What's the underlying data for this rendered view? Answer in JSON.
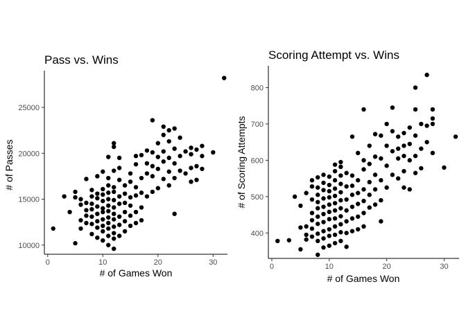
{
  "chart_data": [
    {
      "type": "scatter",
      "title": "Pass vs. Wins",
      "xlabel": "# of Games Won",
      "ylabel": "# of Passes",
      "xlim": [
        -0.6,
        32.6
      ],
      "ylim": [
        9000,
        29000
      ],
      "xticks": [
        0,
        10,
        20,
        30
      ],
      "yticks": [
        10000,
        15000,
        20000,
        25000
      ],
      "grid": false,
      "points": [
        [
          1,
          11800
        ],
        [
          3,
          15300
        ],
        [
          4,
          13600
        ],
        [
          5,
          10200
        ],
        [
          5,
          15200
        ],
        [
          5,
          15800
        ],
        [
          6,
          11800
        ],
        [
          6,
          12700
        ],
        [
          6,
          14400
        ],
        [
          6,
          15000
        ],
        [
          7,
          12400
        ],
        [
          7,
          13200
        ],
        [
          7,
          13800
        ],
        [
          7,
          14600
        ],
        [
          7,
          17200
        ],
        [
          8,
          11200
        ],
        [
          8,
          12300
        ],
        [
          8,
          13100
        ],
        [
          8,
          13900
        ],
        [
          8,
          14500
        ],
        [
          8,
          15300
        ],
        [
          8,
          16000
        ],
        [
          9,
          10800
        ],
        [
          9,
          11900
        ],
        [
          9,
          12600
        ],
        [
          9,
          13400
        ],
        [
          9,
          14200
        ],
        [
          9,
          15100
        ],
        [
          9,
          15600
        ],
        [
          9,
          17500
        ],
        [
          10,
          10500
        ],
        [
          10,
          11500
        ],
        [
          10,
          12100
        ],
        [
          10,
          12800
        ],
        [
          10,
          13600
        ],
        [
          10,
          14000
        ],
        [
          10,
          14800
        ],
        [
          10,
          15500
        ],
        [
          10,
          16100
        ],
        [
          10,
          18000
        ],
        [
          11,
          10000
        ],
        [
          11,
          11000
        ],
        [
          11,
          11800
        ],
        [
          11,
          12400
        ],
        [
          11,
          13000
        ],
        [
          11,
          13700
        ],
        [
          11,
          14300
        ],
        [
          11,
          15000
        ],
        [
          11,
          15700
        ],
        [
          11,
          16500
        ],
        [
          11,
          17300
        ],
        [
          11,
          19600
        ],
        [
          12,
          9600
        ],
        [
          12,
          10700
        ],
        [
          12,
          11300
        ],
        [
          12,
          12000
        ],
        [
          12,
          12800
        ],
        [
          12,
          13400
        ],
        [
          12,
          14100
        ],
        [
          12,
          14900
        ],
        [
          12,
          15800
        ],
        [
          12,
          16300
        ],
        [
          12,
          18100
        ],
        [
          12,
          21100
        ],
        [
          12,
          20700
        ],
        [
          13,
          11000
        ],
        [
          13,
          12200
        ],
        [
          13,
          13100
        ],
        [
          13,
          14500
        ],
        [
          13,
          15300
        ],
        [
          13,
          17100
        ],
        [
          13,
          18400
        ],
        [
          13,
          19500
        ],
        [
          14,
          11500
        ],
        [
          14,
          12600
        ],
        [
          14,
          13600
        ],
        [
          14,
          14600
        ],
        [
          14,
          15600
        ],
        [
          14,
          16500
        ],
        [
          15,
          12100
        ],
        [
          15,
          13200
        ],
        [
          15,
          14300
        ],
        [
          15,
          15200
        ],
        [
          15,
          16900
        ],
        [
          15,
          17800
        ],
        [
          16,
          12400
        ],
        [
          16,
          13600
        ],
        [
          16,
          15400
        ],
        [
          16,
          16300
        ],
        [
          16,
          18800
        ],
        [
          16,
          19700
        ],
        [
          17,
          12700
        ],
        [
          17,
          14100
        ],
        [
          17,
          15700
        ],
        [
          17,
          17300
        ],
        [
          17,
          19800
        ],
        [
          18,
          15300
        ],
        [
          18,
          17800
        ],
        [
          18,
          18900
        ],
        [
          18,
          20300
        ],
        [
          19,
          15800
        ],
        [
          19,
          17500
        ],
        [
          19,
          18600
        ],
        [
          19,
          20100
        ],
        [
          19,
          23600
        ],
        [
          20,
          16200
        ],
        [
          20,
          18300
        ],
        [
          20,
          19600
        ],
        [
          20,
          21100
        ],
        [
          21,
          17200
        ],
        [
          21,
          19100
        ],
        [
          21,
          20200
        ],
        [
          21,
          22000
        ],
        [
          21,
          22900
        ],
        [
          22,
          16500
        ],
        [
          22,
          18000
        ],
        [
          22,
          19500
        ],
        [
          22,
          21300
        ],
        [
          22,
          22500
        ],
        [
          23,
          13400
        ],
        [
          23,
          17300
        ],
        [
          23,
          18900
        ],
        [
          23,
          20500
        ],
        [
          23,
          22700
        ],
        [
          24,
          18100
        ],
        [
          24,
          19700
        ],
        [
          24,
          21700
        ],
        [
          25,
          17800
        ],
        [
          25,
          20200
        ],
        [
          26,
          16900
        ],
        [
          26,
          18400
        ],
        [
          26,
          19900
        ],
        [
          26,
          20600
        ],
        [
          27,
          17100
        ],
        [
          27,
          18600
        ],
        [
          27,
          20400
        ],
        [
          28,
          18300
        ],
        [
          28,
          19700
        ],
        [
          28,
          20800
        ],
        [
          30,
          20100
        ],
        [
          32,
          28200
        ]
      ]
    },
    {
      "type": "scatter",
      "title": "Scoring Attempt vs. Wins",
      "xlabel": "# of Games Won",
      "ylabel": "# of Scoring Attempts",
      "xlim": [
        -0.6,
        32.6
      ],
      "ylim": [
        330,
        860
      ],
      "xticks": [
        0,
        10,
        20,
        30
      ],
      "yticks": [
        400,
        500,
        600,
        700,
        800
      ],
      "grid": false,
      "points": [
        [
          1,
          378
        ],
        [
          3,
          380
        ],
        [
          4,
          500
        ],
        [
          5,
          355
        ],
        [
          5,
          415
        ],
        [
          5,
          475
        ],
        [
          6,
          382
        ],
        [
          6,
          395
        ],
        [
          6,
          418
        ],
        [
          6,
          510
        ],
        [
          7,
          390
        ],
        [
          7,
          412
        ],
        [
          7,
          435
        ],
        [
          7,
          455
        ],
        [
          7,
          492
        ],
        [
          7,
          528
        ],
        [
          7,
          545
        ],
        [
          8,
          340
        ],
        [
          8,
          378
        ],
        [
          8,
          398
        ],
        [
          8,
          425
        ],
        [
          8,
          445
        ],
        [
          8,
          468
        ],
        [
          8,
          485
        ],
        [
          8,
          505
        ],
        [
          8,
          525
        ],
        [
          8,
          553
        ],
        [
          9,
          360
        ],
        [
          9,
          385
        ],
        [
          9,
          405
        ],
        [
          9,
          430
        ],
        [
          9,
          452
        ],
        [
          9,
          472
        ],
        [
          9,
          495
        ],
        [
          9,
          518
        ],
        [
          9,
          538
        ],
        [
          9,
          560
        ],
        [
          10,
          365
        ],
        [
          10,
          392
        ],
        [
          10,
          410
        ],
        [
          10,
          438
        ],
        [
          10,
          458
        ],
        [
          10,
          478
        ],
        [
          10,
          498
        ],
        [
          10,
          515
        ],
        [
          10,
          532
        ],
        [
          10,
          555
        ],
        [
          11,
          372
        ],
        [
          11,
          395
        ],
        [
          11,
          418
        ],
        [
          11,
          440
        ],
        [
          11,
          462
        ],
        [
          11,
          482
        ],
        [
          11,
          502
        ],
        [
          11,
          522
        ],
        [
          11,
          545
        ],
        [
          11,
          570
        ],
        [
          11,
          588
        ],
        [
          12,
          378
        ],
        [
          12,
          402
        ],
        [
          12,
          424
        ],
        [
          12,
          446
        ],
        [
          12,
          468
        ],
        [
          12,
          490
        ],
        [
          12,
          512
        ],
        [
          12,
          535
        ],
        [
          12,
          558
        ],
        [
          12,
          582
        ],
        [
          12,
          595
        ],
        [
          13,
          362
        ],
        [
          13,
          400
        ],
        [
          13,
          432
        ],
        [
          13,
          462
        ],
        [
          13,
          492
        ],
        [
          13,
          528
        ],
        [
          13,
          565
        ],
        [
          14,
          405
        ],
        [
          14,
          440
        ],
        [
          14,
          472
        ],
        [
          14,
          505
        ],
        [
          14,
          530
        ],
        [
          14,
          558
        ],
        [
          14,
          665
        ],
        [
          15,
          410
        ],
        [
          15,
          445
        ],
        [
          15,
          480
        ],
        [
          15,
          510
        ],
        [
          15,
          545
        ],
        [
          15,
          620
        ],
        [
          16,
          418
        ],
        [
          16,
          455
        ],
        [
          16,
          488
        ],
        [
          16,
          520
        ],
        [
          16,
          575
        ],
        [
          16,
          600
        ],
        [
          16,
          740
        ],
        [
          17,
          470
        ],
        [
          17,
          505
        ],
        [
          17,
          540
        ],
        [
          17,
          590
        ],
        [
          17,
          640
        ],
        [
          18,
          478
        ],
        [
          18,
          520
        ],
        [
          18,
          560
        ],
        [
          18,
          610
        ],
        [
          18,
          672
        ],
        [
          19,
          432
        ],
        [
          19,
          490
        ],
        [
          19,
          545
        ],
        [
          19,
          605
        ],
        [
          19,
          668
        ],
        [
          20,
          525
        ],
        [
          20,
          585
        ],
        [
          20,
          640
        ],
        [
          20,
          700
        ],
        [
          21,
          560
        ],
        [
          21,
          625
        ],
        [
          21,
          680
        ],
        [
          21,
          745
        ],
        [
          22,
          550
        ],
        [
          22,
          605
        ],
        [
          22,
          632
        ],
        [
          22,
          665
        ],
        [
          23,
          525
        ],
        [
          23,
          570
        ],
        [
          23,
          612
        ],
        [
          23,
          640
        ],
        [
          23,
          675
        ],
        [
          24,
          520
        ],
        [
          24,
          600
        ],
        [
          24,
          645
        ],
        [
          24,
          690
        ],
        [
          25,
          565
        ],
        [
          25,
          612
        ],
        [
          25,
          668
        ],
        [
          25,
          740
        ],
        [
          25,
          800
        ],
        [
          26,
          578
        ],
        [
          26,
          632
        ],
        [
          26,
          700
        ],
        [
          27,
          650
        ],
        [
          27,
          695
        ],
        [
          27,
          835
        ],
        [
          28,
          620
        ],
        [
          28,
          715
        ],
        [
          28,
          740
        ],
        [
          28,
          700
        ],
        [
          30,
          580
        ],
        [
          32,
          665
        ]
      ]
    }
  ]
}
